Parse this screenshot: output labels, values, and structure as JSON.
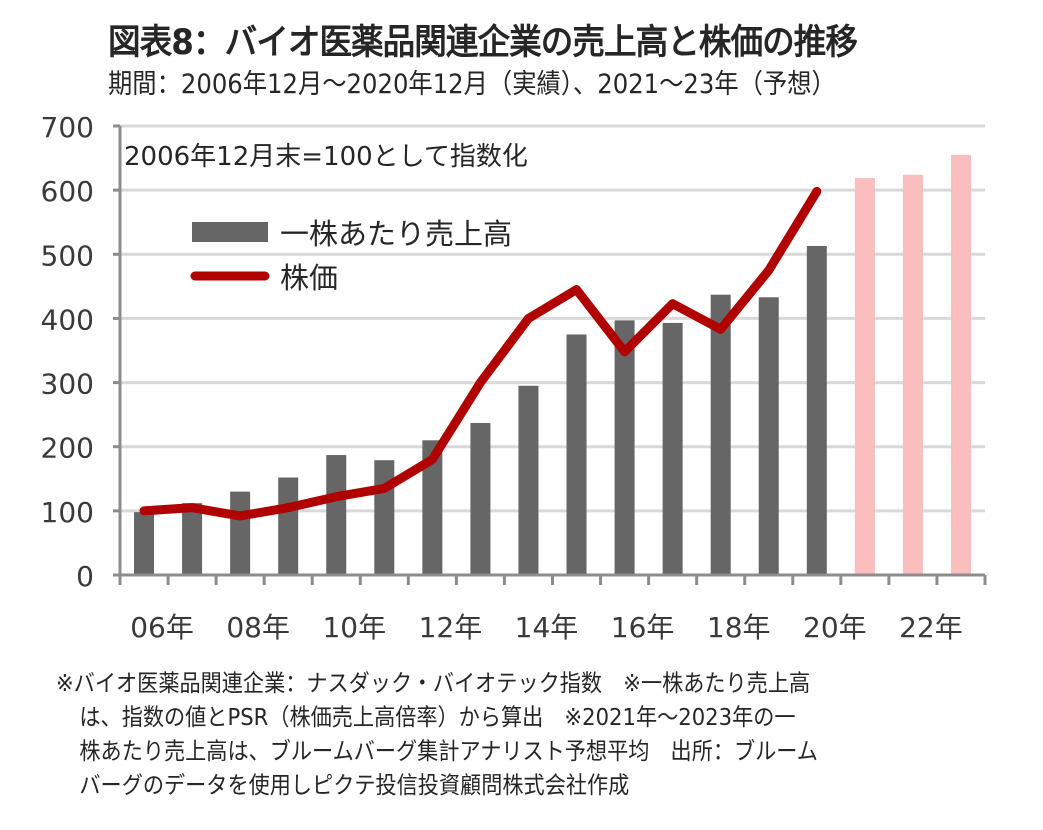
{
  "header": {
    "title": "図表8：バイオ医薬品関連企業の売上高と株価の推移",
    "subtitle": "期間：2006年12月～2020年12月（実績）、2021～23年（予想）"
  },
  "chart_data": {
    "type": "bar",
    "title": "図表8：バイオ医薬品関連企業の売上高と株価の推移",
    "subtitle": "期間：2006年12月～2020年12月（実績）、2021～23年（予想）",
    "annotation": "2006年12月末=100として指数化",
    "xlabel": "",
    "ylabel": "",
    "ylim": [
      0,
      700
    ],
    "yticks": [
      0,
      100,
      200,
      300,
      400,
      500,
      600,
      700
    ],
    "grid": true,
    "legend_position": "top-left",
    "categories": [
      "2006",
      "2007",
      "2008",
      "2009",
      "2010",
      "2011",
      "2012",
      "2013",
      "2014",
      "2015",
      "2016",
      "2017",
      "2018",
      "2019",
      "2020",
      "2021",
      "2022",
      "2023"
    ],
    "xtick_labels": [
      "06年",
      "08年",
      "10年",
      "12年",
      "14年",
      "16年",
      "18年",
      "20年",
      "22年"
    ],
    "series": [
      {
        "name": "一株あたり売上高",
        "type": "bar",
        "color": "#666666",
        "forecast_color": "#FBBDBD",
        "forecast_from": "2021",
        "values": [
          98,
          112,
          130,
          152,
          187,
          179,
          210,
          237,
          295,
          375,
          397,
          393,
          437,
          433,
          513,
          619,
          624,
          655
        ]
      },
      {
        "name": "株価",
        "type": "line",
        "color": "#B00000",
        "values": [
          100,
          105,
          92,
          105,
          122,
          135,
          180,
          300,
          400,
          445,
          348,
          423,
          383,
          475,
          598,
          null,
          null,
          null
        ]
      }
    ]
  },
  "footnote": {
    "lines": [
      "※バイオ医薬品関連企業：ナスダック・バイオテック指数　※一株あたり売上高",
      "は、指数の値とPSR（株価売上高倍率）から算出　※2021年～2023年の一",
      "株あたり売上高は、ブルームバーグ集計アナリスト予想平均　出所：ブルーム",
      "バーグのデータを使用しピクテ投信投資顧問株式会社作成"
    ]
  }
}
